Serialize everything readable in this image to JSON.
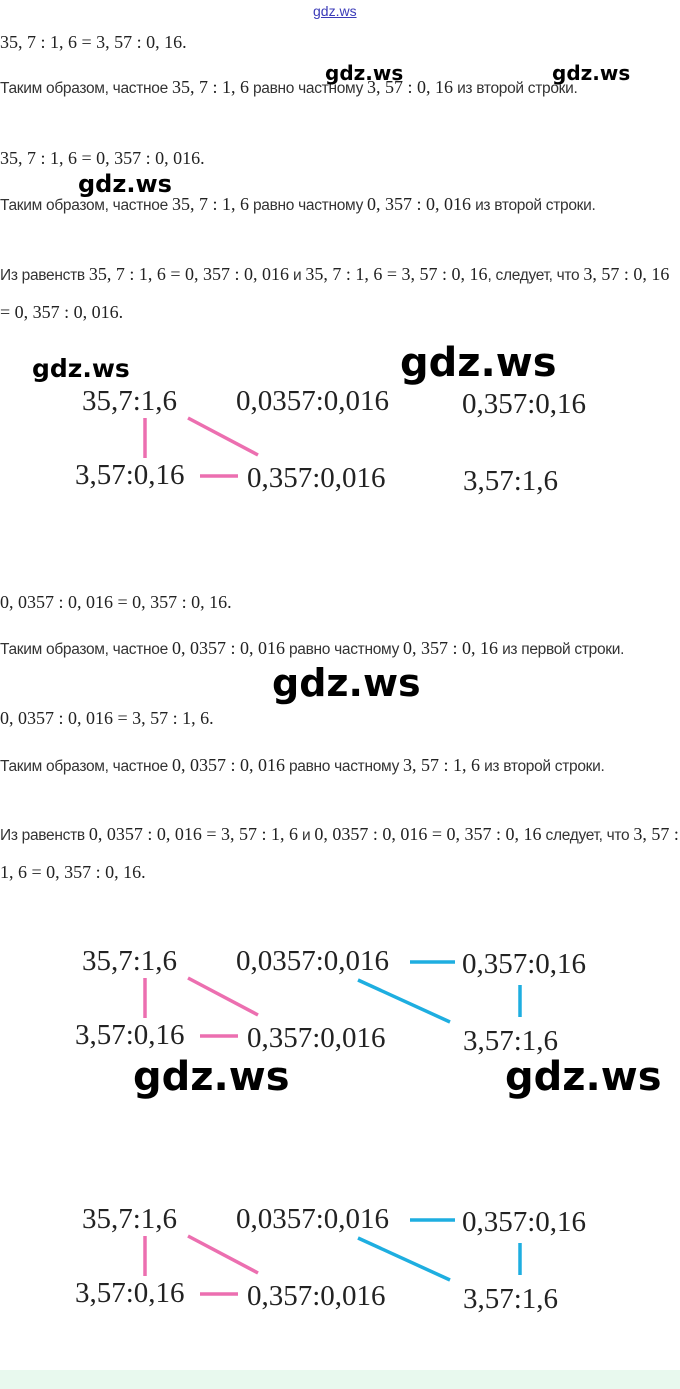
{
  "top_link": "gdz.ws",
  "paragraphs": [
    [
      {
        "math": "35, 7 : 1, 6 = 3, 57 : 0, 16."
      }
    ],
    [
      {
        "text": "Таким образом, частное "
      },
      {
        "math": "35, 7 : 1, 6"
      },
      {
        "text": " равно частному "
      },
      {
        "math": "3, 57 : 0, 16"
      },
      {
        "text": " из второй строки."
      }
    ],
    [
      {
        "math": "35, 7 : 1, 6 = 0, 357 : 0, 016."
      }
    ],
    [
      {
        "text": "Таким образом, частное "
      },
      {
        "math": "35, 7 : 1, 6"
      },
      {
        "text": " равно частному "
      },
      {
        "math": "0, 357 : 0, 016"
      },
      {
        "text": " из второй строки."
      }
    ],
    [
      {
        "text": "Из равенств "
      },
      {
        "math": "35, 7 : 1, 6 = 0, 357 : 0, 016"
      },
      {
        "text": " и "
      },
      {
        "math": "35, 7 : 1, 6 = 3, 57 : 0, 16"
      },
      {
        "text": ", следует, что "
      },
      {
        "math": "3, 57 : 0, 16 = 0, 357 : 0, 016."
      }
    ],
    [
      {
        "math": "0, 0357 : 0, 016 = 0, 357 : 0, 16."
      }
    ],
    [
      {
        "text": "Таким образом, частное "
      },
      {
        "math": "0, 0357 : 0, 016"
      },
      {
        "text": " равно частному "
      },
      {
        "math": "0, 357 : 0, 16"
      },
      {
        "text": " из первой строки."
      }
    ],
    [
      {
        "math": "0, 0357 : 0, 016 = 3, 57 : 1, 6."
      }
    ],
    [
      {
        "text": "Таким образом, частное "
      },
      {
        "math": "0, 0357 : 0, 016"
      },
      {
        "text": " равно частному "
      },
      {
        "math": "3, 57 : 1, 6"
      },
      {
        "text": " из второй строки."
      }
    ],
    [
      {
        "text": "Из равенств "
      },
      {
        "math": "0, 0357 : 0, 016 = 3, 57 : 1, 6"
      },
      {
        "text": " и "
      },
      {
        "math": "0, 0357 : 0, 016 = 0, 357 : 0, 16"
      },
      {
        "text": " следует, что "
      },
      {
        "math": "3, 57 : 1, 6 = 0, 357 : 0, 16."
      }
    ]
  ],
  "diagrams": [
    {
      "labels": [
        "35,7:1,6",
        "0,0357:0,016",
        "0,357:0,16",
        "3,57:0,16",
        "0,357:0,016",
        "3,57:1,6"
      ]
    },
    {
      "labels": [
        "35,7:1,6",
        "0,0357:0,016",
        "0,357:0,16",
        "3,57:0,16",
        "0,357:0,016",
        "3,57:1,6"
      ]
    },
    {
      "labels": [
        "35,7:1,6",
        "0,0357:0,016",
        "0,357:0,16",
        "3,57:0,16",
        "0,357:0,016",
        "3,57:1,6"
      ]
    }
  ],
  "watermarks": [
    "gdz.ws",
    "gdz.ws",
    "gdz.ws",
    "gdz.ws",
    "gdz.ws",
    "gdz.ws",
    "gdz.ws",
    "gdz.ws"
  ]
}
